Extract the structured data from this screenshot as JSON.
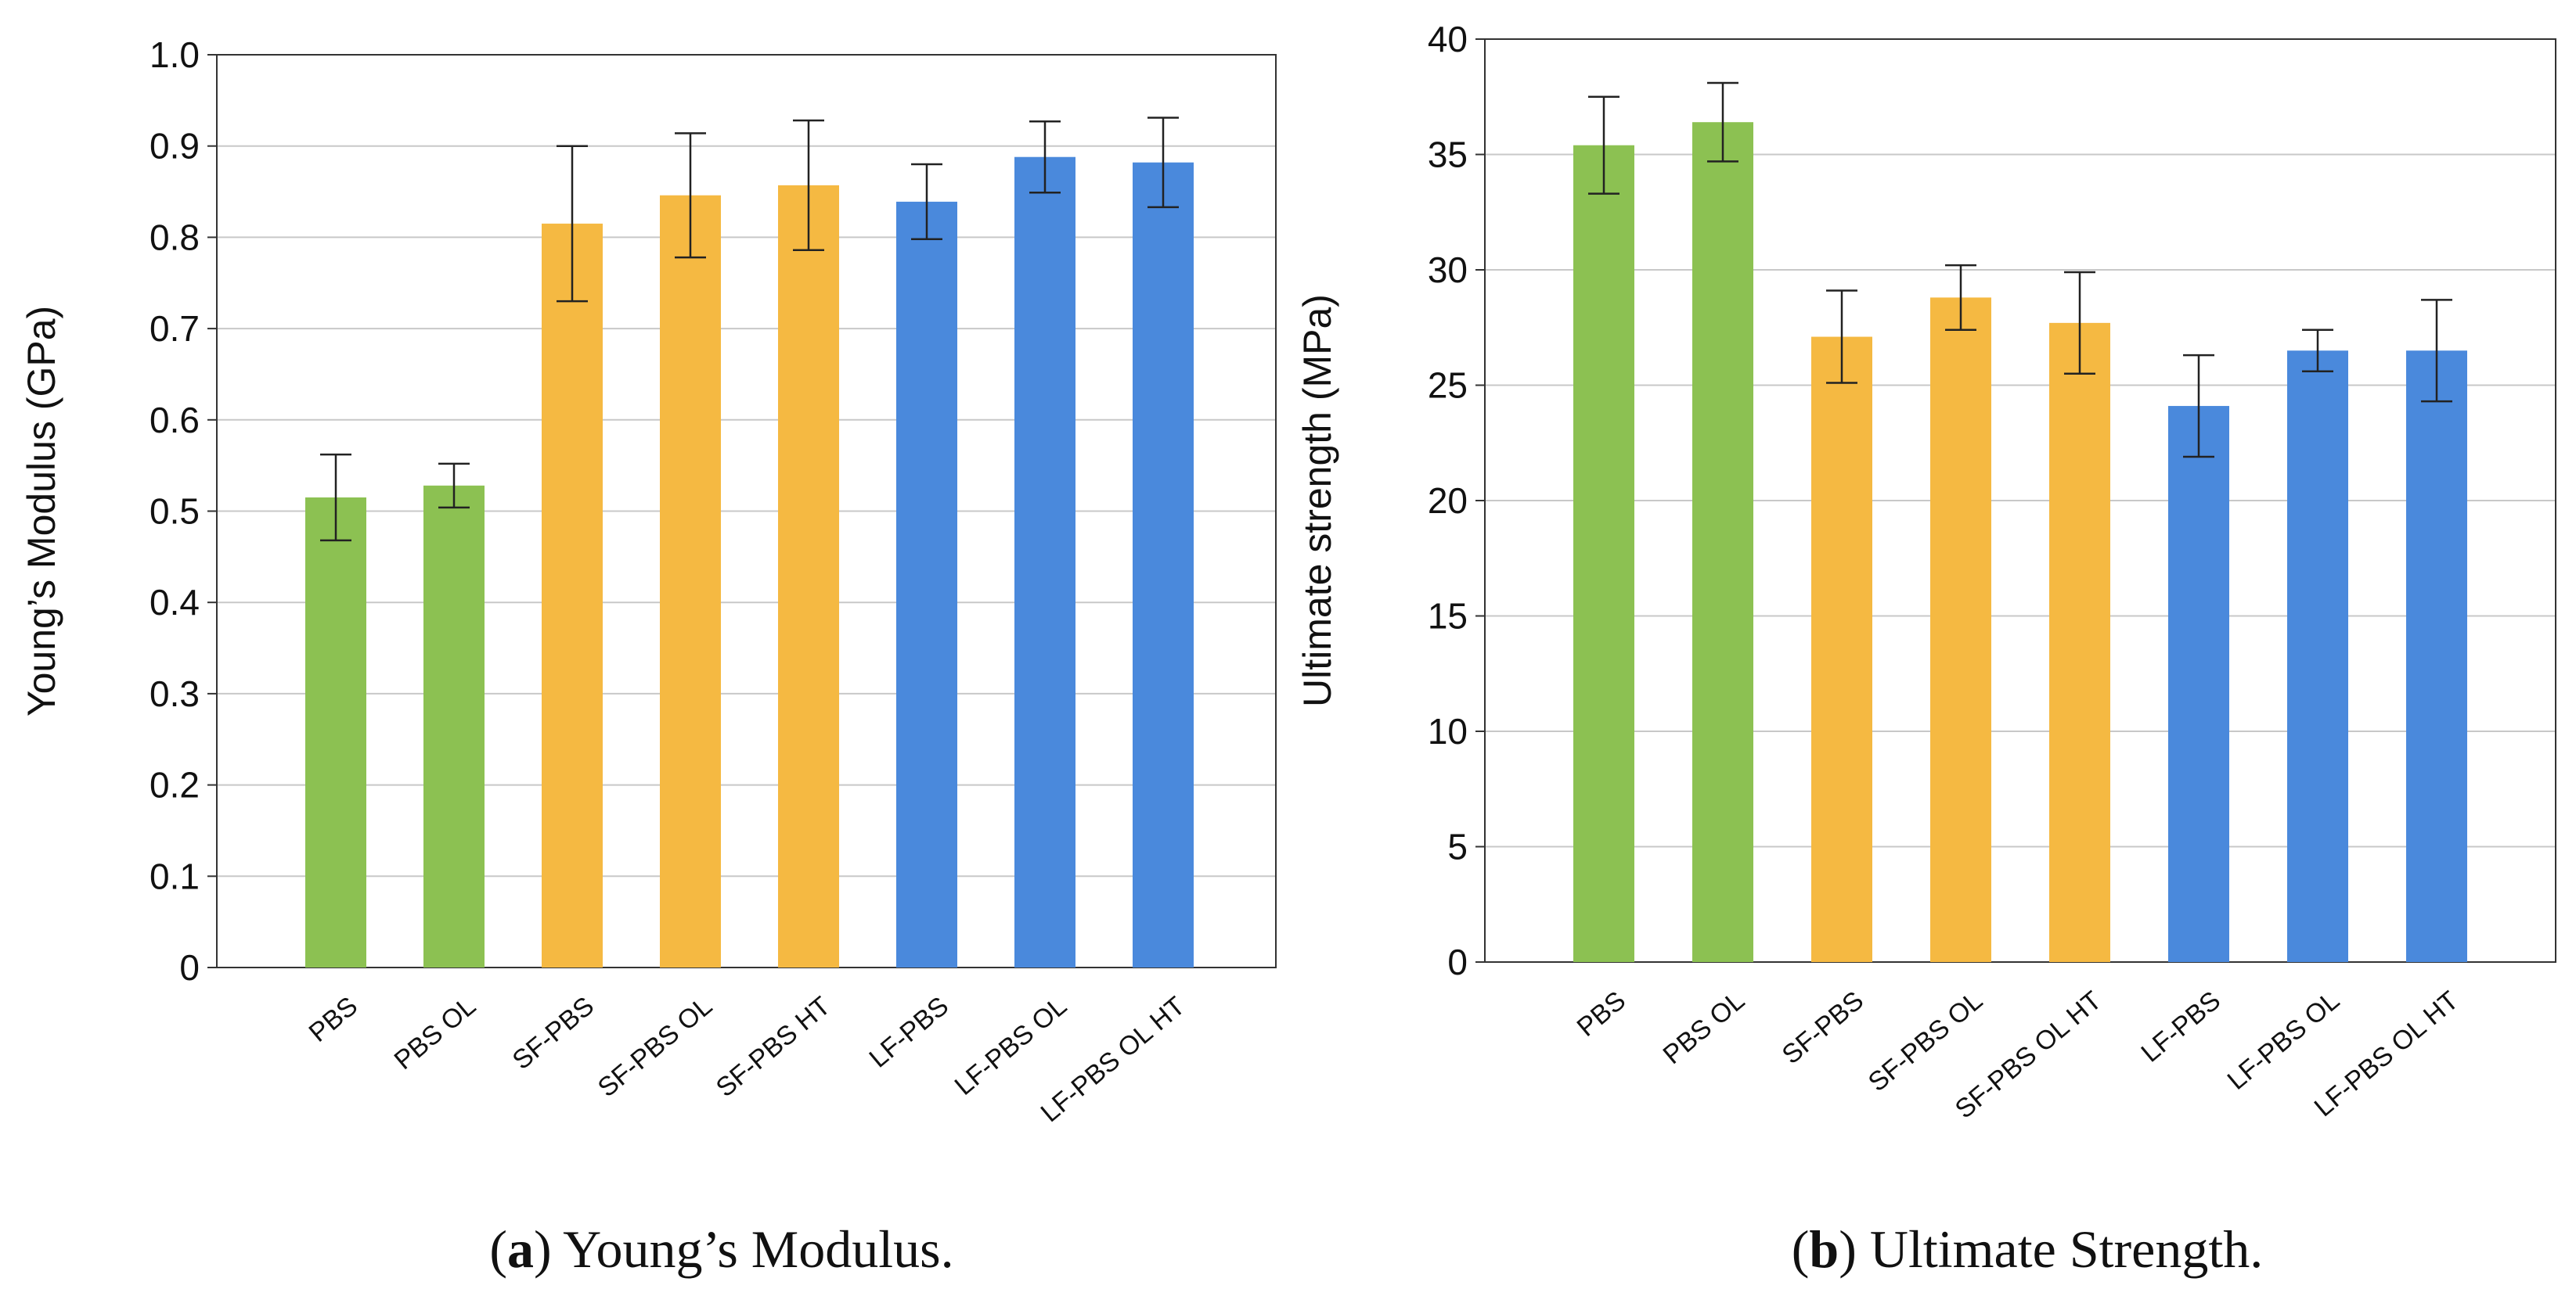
{
  "colors": {
    "green": "#8cc152",
    "orange": "#f5b942",
    "blue": "#4a89dc",
    "grid": "#c8c8c8",
    "axis": "#333333"
  },
  "chart_data": [
    {
      "type": "bar",
      "ylabel": "Young’s Modulus (GPa)",
      "ylim": [
        0,
        1.0
      ],
      "ytick_values": [
        0,
        0.1,
        0.2,
        0.3,
        0.4,
        0.5,
        0.6,
        0.7,
        0.8,
        0.9,
        1.0
      ],
      "ytick_labels": [
        "0",
        "0.1",
        "0.2",
        "0.3",
        "0.4",
        "0.5",
        "0.6",
        "0.7",
        "0.8",
        "0.9",
        "1.0"
      ],
      "grid": true,
      "categories": [
        "PBS",
        "PBS OL",
        "SF-PBS",
        "SF-PBS OL",
        "SF-PBS HT",
        "LF-PBS",
        "LF-PBS OL",
        "LF-PBS OL HT"
      ],
      "values": [
        0.515,
        0.528,
        0.815,
        0.846,
        0.857,
        0.839,
        0.888,
        0.882
      ],
      "errors": [
        0.047,
        0.024,
        0.085,
        0.068,
        0.071,
        0.041,
        0.039,
        0.049
      ],
      "bar_colors": [
        "green",
        "green",
        "orange",
        "orange",
        "orange",
        "blue",
        "blue",
        "blue"
      ],
      "caption_label": "(a)",
      "caption_bold": "a",
      "caption_text": "Young’s Modulus."
    },
    {
      "type": "bar",
      "ylabel": "Ultimate strength (MPa)",
      "ylim": [
        0,
        40
      ],
      "ytick_values": [
        0,
        5,
        10,
        15,
        20,
        25,
        30,
        35,
        40
      ],
      "ytick_labels": [
        "0",
        "5",
        "10",
        "15",
        "20",
        "25",
        "30",
        "35",
        "40"
      ],
      "grid": true,
      "categories": [
        "PBS",
        "PBS OL",
        "SF-PBS",
        "SF-PBS OL",
        "SF-PBS OL HT",
        "LF-PBS",
        "LF-PBS OL",
        "LF-PBS OL HT"
      ],
      "values": [
        35.4,
        36.4,
        27.1,
        28.8,
        27.7,
        24.1,
        26.5,
        26.5
      ],
      "errors": [
        2.1,
        1.7,
        2.0,
        1.4,
        2.2,
        2.2,
        0.9,
        2.2
      ],
      "bar_colors": [
        "green",
        "green",
        "orange",
        "orange",
        "orange",
        "blue",
        "blue",
        "blue"
      ],
      "caption_label": "(b)",
      "caption_bold": "b",
      "caption_text": "Ultimate Strength."
    }
  ]
}
